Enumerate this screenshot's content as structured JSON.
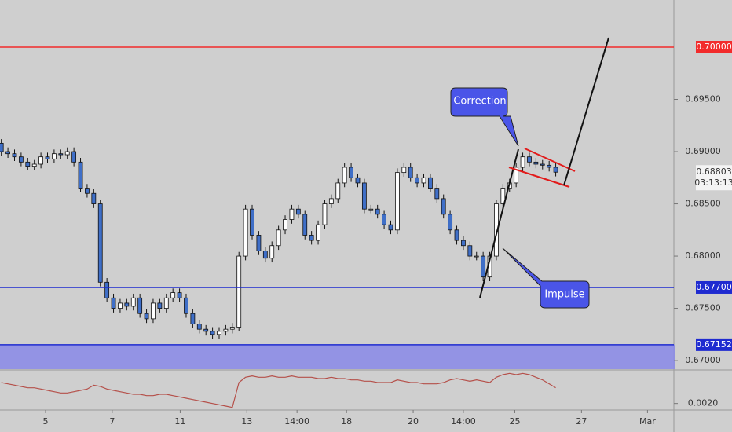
{
  "chart_data": {
    "type": "candlestick",
    "x": [
      0,
      1,
      2,
      3,
      4,
      5,
      6,
      7,
      8,
      9,
      10,
      11,
      12,
      13,
      14,
      15,
      16,
      17,
      18,
      19,
      20,
      21,
      22,
      23,
      24,
      25,
      26,
      27,
      28,
      29,
      30,
      31,
      32,
      33,
      34,
      35,
      36,
      37,
      38,
      39,
      40,
      41,
      42,
      43,
      44,
      45,
      46,
      47,
      48,
      49,
      50,
      51,
      52,
      53,
      54,
      55,
      56,
      57,
      58,
      59,
      60,
      61,
      62,
      63,
      64,
      65,
      66,
      67,
      68,
      69,
      70,
      71,
      72,
      73,
      74,
      75,
      76,
      77,
      78,
      79,
      80,
      81,
      82,
      83,
      84
    ],
    "open": [
      0.6908,
      0.69,
      0.6898,
      0.6895,
      0.689,
      0.6886,
      0.6888,
      0.6895,
      0.6893,
      0.6898,
      0.6897,
      0.69,
      0.689,
      0.6865,
      0.686,
      0.685,
      0.6775,
      0.676,
      0.675,
      0.6755,
      0.6752,
      0.676,
      0.6745,
      0.674,
      0.6755,
      0.675,
      0.676,
      0.6765,
      0.676,
      0.6745,
      0.6735,
      0.673,
      0.6728,
      0.6725,
      0.6728,
      0.673,
      0.6732,
      0.68,
      0.6845,
      0.682,
      0.6805,
      0.6798,
      0.681,
      0.6825,
      0.6835,
      0.6845,
      0.684,
      0.682,
      0.6815,
      0.683,
      0.685,
      0.6855,
      0.687,
      0.6885,
      0.6875,
      0.687,
      0.6845,
      0.6845,
      0.684,
      0.683,
      0.6825,
      0.688,
      0.6885,
      0.6875,
      0.687,
      0.6875,
      0.6865,
      0.6855,
      0.684,
      0.6825,
      0.6815,
      0.681,
      0.68,
      0.68,
      0.678,
      0.68,
      0.685,
      0.6865,
      0.687,
      0.6885,
      0.6895,
      0.689,
      0.6888,
      0.6887,
      0.6885
    ],
    "high": [
      0.6912,
      0.6904,
      0.6902,
      0.6899,
      0.6894,
      0.6892,
      0.6899,
      0.6899,
      0.6902,
      0.6902,
      0.6904,
      0.6904,
      0.6894,
      0.6869,
      0.6864,
      0.6854,
      0.6779,
      0.6764,
      0.6759,
      0.6759,
      0.6764,
      0.6764,
      0.6749,
      0.6759,
      0.6759,
      0.6764,
      0.6769,
      0.6769,
      0.6764,
      0.6749,
      0.6739,
      0.6734,
      0.6732,
      0.6732,
      0.6734,
      0.6736,
      0.6804,
      0.6849,
      0.6849,
      0.6824,
      0.6809,
      0.6814,
      0.6829,
      0.6839,
      0.6849,
      0.6849,
      0.6844,
      0.6824,
      0.6834,
      0.6854,
      0.6859,
      0.6874,
      0.6889,
      0.6889,
      0.6879,
      0.6874,
      0.6849,
      0.6849,
      0.6844,
      0.6834,
      0.6884,
      0.6889,
      0.6889,
      0.6879,
      0.6879,
      0.6879,
      0.6869,
      0.6859,
      0.6844,
      0.6829,
      0.6819,
      0.6814,
      0.6804,
      0.6804,
      0.6804,
      0.6854,
      0.6869,
      0.6874,
      0.6889,
      0.6899,
      0.6899,
      0.6894,
      0.6892,
      0.6891,
      0.6889
    ],
    "low": [
      0.6896,
      0.6894,
      0.6891,
      0.6886,
      0.6882,
      0.6882,
      0.6884,
      0.6889,
      0.6889,
      0.6893,
      0.6893,
      0.6886,
      0.6861,
      0.6856,
      0.6846,
      0.6771,
      0.6756,
      0.6746,
      0.6746,
      0.6748,
      0.6748,
      0.6741,
      0.6736,
      0.6736,
      0.6746,
      0.6746,
      0.6756,
      0.6756,
      0.6741,
      0.6731,
      0.6726,
      0.6724,
      0.6721,
      0.6721,
      0.6724,
      0.6726,
      0.6728,
      0.6796,
      0.6816,
      0.6801,
      0.6794,
      0.6794,
      0.6806,
      0.6821,
      0.6831,
      0.6836,
      0.6816,
      0.6811,
      0.6811,
      0.6826,
      0.6846,
      0.6851,
      0.6866,
      0.6871,
      0.6866,
      0.6841,
      0.6841,
      0.6836,
      0.6826,
      0.6821,
      0.6821,
      0.6876,
      0.6871,
      0.6866,
      0.6866,
      0.6861,
      0.6851,
      0.6836,
      0.6821,
      0.6811,
      0.6806,
      0.6796,
      0.6796,
      0.6776,
      0.6776,
      0.6796,
      0.6846,
      0.6861,
      0.6866,
      0.6881,
      0.6886,
      0.6884,
      0.6883,
      0.6881,
      0.68763
    ],
    "close": [
      0.69,
      0.6898,
      0.6895,
      0.689,
      0.6886,
      0.6888,
      0.6895,
      0.6893,
      0.6898,
      0.6897,
      0.69,
      0.689,
      0.6865,
      0.686,
      0.685,
      0.6775,
      0.676,
      0.675,
      0.6755,
      0.6752,
      0.676,
      0.6745,
      0.674,
      0.6755,
      0.675,
      0.676,
      0.6765,
      0.676,
      0.6745,
      0.6735,
      0.673,
      0.6728,
      0.6725,
      0.6728,
      0.673,
      0.6732,
      0.68,
      0.6845,
      0.682,
      0.6805,
      0.6798,
      0.681,
      0.6825,
      0.6835,
      0.6845,
      0.684,
      0.682,
      0.6815,
      0.683,
      0.685,
      0.6855,
      0.687,
      0.6885,
      0.6875,
      0.687,
      0.6845,
      0.6845,
      0.684,
      0.683,
      0.6825,
      0.688,
      0.6885,
      0.6875,
      0.687,
      0.6875,
      0.6865,
      0.6855,
      0.684,
      0.6825,
      0.6815,
      0.681,
      0.68,
      0.68,
      0.678,
      0.68,
      0.685,
      0.6865,
      0.687,
      0.6885,
      0.6895,
      0.689,
      0.6888,
      0.6887,
      0.6885,
      0.68803
    ],
    "up_color": "#ffffff",
    "down_color": "#3f6fc8",
    "xlim": [
      -0.2,
      101.9
    ],
    "xticks": [
      {
        "value": 6.7,
        "label": "5"
      },
      {
        "value": 16.8,
        "label": "7"
      },
      {
        "value": 27.1,
        "label": "11"
      },
      {
        "value": 37.2,
        "label": "13"
      },
      {
        "value": 44.8,
        "label": "14:00"
      },
      {
        "value": 52.3,
        "label": "18"
      },
      {
        "value": 62.4,
        "label": "20"
      },
      {
        "value": 70.0,
        "label": "14:00"
      },
      {
        "value": 77.8,
        "label": "25"
      },
      {
        "value": 87.9,
        "label": "27"
      },
      {
        "value": 97.9,
        "label": "Mar"
      }
    ],
    "ylim": [
      0.66918,
      0.70451
    ],
    "yticks": [
      {
        "value": 0.67,
        "label": "0.67000"
      },
      {
        "value": 0.675,
        "label": "0.67500"
      },
      {
        "value": 0.68,
        "label": "0.68000"
      },
      {
        "value": 0.685,
        "label": "0.68500"
      },
      {
        "value": 0.69,
        "label": "0.69000"
      },
      {
        "value": 0.695,
        "label": "0.69500"
      }
    ],
    "hlines": [
      {
        "value": 0.7,
        "label": "0.70000",
        "color": "#f22c2c"
      },
      {
        "value": 0.677,
        "label": "0.67700",
        "color": "#1f2bd0"
      },
      {
        "value": 0.67152,
        "label": "0.67152",
        "color": "#1f2bd0"
      }
    ],
    "zone": {
      "value": 0.67152,
      "color": "#8c8ce6"
    },
    "last": {
      "value": 0.68803,
      "label": "0.68803"
    },
    "countdown": "03:13:13",
    "annotations": [
      "Correction",
      "Impulse"
    ],
    "indicator": {
      "type": "line",
      "color": "#b5504a",
      "values": [
        0.0036,
        0.0035,
        0.0034,
        0.0033,
        0.0032,
        0.0032,
        0.0031,
        0.003,
        0.0029,
        0.0028,
        0.0028,
        0.0029,
        0.003,
        0.0031,
        0.0034,
        0.0033,
        0.0031,
        0.003,
        0.0029,
        0.0028,
        0.0027,
        0.0027,
        0.0026,
        0.0026,
        0.0027,
        0.0027,
        0.0026,
        0.0025,
        0.0024,
        0.0023,
        0.0022,
        0.0021,
        0.002,
        0.0019,
        0.0018,
        0.0017,
        0.0036,
        0.004,
        0.0041,
        0.004,
        0.004,
        0.0041,
        0.004,
        0.004,
        0.0041,
        0.004,
        0.004,
        0.004,
        0.0039,
        0.0039,
        0.004,
        0.0039,
        0.0039,
        0.0038,
        0.0038,
        0.0037,
        0.0037,
        0.0036,
        0.0036,
        0.0036,
        0.0038,
        0.0037,
        0.0036,
        0.0036,
        0.0035,
        0.0035,
        0.0035,
        0.0036,
        0.0038,
        0.0039,
        0.0038,
        0.0037,
        0.0038,
        0.0037,
        0.0036,
        0.004,
        0.0042,
        0.0043,
        0.0042,
        0.0043,
        0.0042,
        0.004,
        0.0038,
        0.0035,
        0.0032
      ],
      "ylim": [
        0.0015,
        0.0045
      ],
      "yticks": [
        {
          "value": 0.002,
          "label": "0.0020"
        }
      ]
    }
  }
}
